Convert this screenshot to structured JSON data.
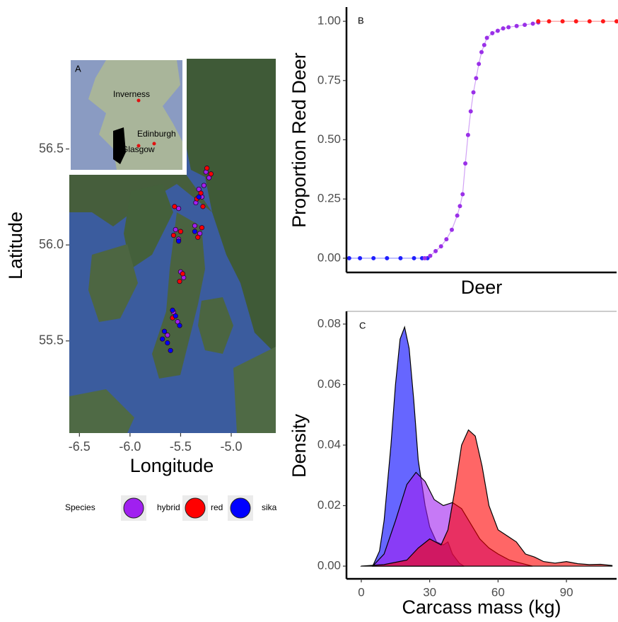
{
  "chart_data": [
    {
      "type": "scatter",
      "panel_label": "A",
      "x_label": "Longitude",
      "y_label": "Latitude",
      "xlim": [
        -6.6,
        -4.56
      ],
      "ylim": [
        55.02,
        56.97
      ],
      "xticks": [
        -6.5,
        {
          "value": -6,
          "label": "-6.0"
        },
        -5.5,
        {
          "value": -5,
          "label": "-5.0"
        }
      ],
      "yticks": [
        55.5,
        {
          "value": 56,
          "label": "56.0"
        },
        56.5
      ],
      "annotations": [
        "Inverness",
        "Edinburgh",
        "Glasgow"
      ],
      "legend_title": "Species",
      "series": [
        {
          "name": "hybrid",
          "color": "#a020f0",
          "x": [
            -5.32,
            -5.29,
            -5.35,
            -5.27,
            -5.55,
            -5.52,
            -5.36,
            -5.31,
            -5.5,
            -5.47,
            -5.57,
            -5.53,
            -5.63,
            -5.25,
            -5.22,
            -5.52
          ],
          "values": [
            56.29,
            56.25,
            56.22,
            56.31,
            56.08,
            56.03,
            56.1,
            56.06,
            55.86,
            55.83,
            55.65,
            55.6,
            55.53,
            56.38,
            56.35,
            56.19
          ]
        },
        {
          "name": "red",
          "color": "#ff0000",
          "x": [
            -5.3,
            -5.34,
            -5.28,
            -5.57,
            -5.5,
            -5.33,
            -5.29,
            -5.48,
            -5.51,
            -5.24,
            -5.56,
            -5.58,
            -5.2
          ],
          "values": [
            56.27,
            56.24,
            56.2,
            56.05,
            56.07,
            56.04,
            56.09,
            55.85,
            55.81,
            56.4,
            56.2,
            55.62,
            56.37
          ]
        },
        {
          "name": "sika",
          "color": "#0000ff",
          "x": [
            -5.55,
            -5.51,
            -5.66,
            -5.63,
            -5.68,
            -5.6,
            -5.32,
            -5.36,
            -5.52,
            -5.58
          ],
          "values": [
            55.63,
            55.58,
            55.55,
            55.49,
            55.51,
            55.45,
            56.25,
            56.07,
            56.02,
            55.66
          ]
        }
      ]
    },
    {
      "type": "line",
      "panel_label": "B",
      "x_label": "Deer",
      "y_label": "Proportion Red Deer",
      "xlim": [
        0,
        100
      ],
      "ylim": [
        -0.06,
        1.06
      ],
      "yticks": [
        {
          "value": 0,
          "label": "0.00"
        },
        {
          "value": 0.25,
          "label": "0.25"
        },
        {
          "value": 0.5,
          "label": "0.50"
        },
        {
          "value": 0.75,
          "label": "0.75"
        },
        {
          "value": 1,
          "label": "1.00"
        }
      ],
      "series": [
        {
          "color": "#1f1fff",
          "x": [
            1,
            5,
            10,
            15,
            20,
            25,
            28,
            30
          ],
          "values": [
            0,
            0,
            0,
            0,
            0,
            0,
            0,
            0
          ]
        },
        {
          "color": "#9a30e8",
          "x": [
            29,
            31,
            33,
            35,
            37,
            39,
            41,
            42,
            43,
            44,
            45,
            46,
            47,
            48,
            49,
            50,
            51,
            52,
            54,
            56,
            58,
            60,
            63,
            66,
            69,
            71
          ],
          "values": [
            0,
            0.01,
            0.03,
            0.05,
            0.08,
            0.12,
            0.18,
            0.22,
            0.27,
            0.4,
            0.52,
            0.62,
            0.7,
            0.76,
            0.82,
            0.87,
            0.9,
            0.93,
            0.95,
            0.96,
            0.97,
            0.975,
            0.98,
            0.985,
            0.99,
            0.995
          ]
        },
        {
          "color": "#ff1a1a",
          "x": [
            71,
            75,
            80,
            85,
            90,
            95,
            100
          ],
          "values": [
            1,
            1,
            1,
            1,
            1,
            1,
            1
          ]
        }
      ]
    },
    {
      "type": "area",
      "panel_label": "C",
      "x_label": "Carcass mass (kg)",
      "y_label": "Density",
      "xlim": [
        -6.5,
        112
      ],
      "ylim": [
        -0.0042,
        0.0842
      ],
      "xticks": [
        0,
        30,
        60,
        90
      ],
      "yticks": [
        {
          "value": 0,
          "label": "0.00"
        },
        {
          "value": 0.02,
          "label": "0.02"
        },
        {
          "value": 0.04,
          "label": "0.04"
        },
        {
          "value": 0.06,
          "label": "0.06"
        },
        {
          "value": 0.08,
          "label": "0.08"
        }
      ],
      "series": [
        {
          "color": "#0000ff",
          "x": [
            5,
            8,
            10,
            13,
            15,
            17,
            19,
            21,
            23,
            25,
            28,
            30,
            33,
            36,
            38,
            40,
            43,
            45
          ],
          "values": [
            0,
            0.005,
            0.015,
            0.04,
            0.06,
            0.075,
            0.079,
            0.072,
            0.055,
            0.035,
            0.02,
            0.013,
            0.008,
            0.007,
            0.008,
            0.004,
            0.001,
            0
          ]
        },
        {
          "color": "#a020f0",
          "x": [
            5,
            10,
            15,
            20,
            24,
            28,
            32,
            36,
            40,
            44,
            48,
            52,
            56,
            60,
            65,
            70,
            75
          ],
          "values": [
            0,
            0.004,
            0.015,
            0.027,
            0.031,
            0.028,
            0.022,
            0.02,
            0.021,
            0.019,
            0.014,
            0.009,
            0.006,
            0.004,
            0.002,
            0.001,
            0
          ]
        },
        {
          "color": "#ff0000",
          "x": [
            0,
            10,
            20,
            25,
            30,
            35,
            38,
            41,
            44,
            47,
            50,
            53,
            56,
            60,
            64,
            68,
            72,
            76,
            80,
            85,
            90,
            95,
            100,
            105,
            110
          ],
          "values": [
            0,
            0.0005,
            0.002,
            0.006,
            0.009,
            0.007,
            0.012,
            0.025,
            0.04,
            0.045,
            0.043,
            0.033,
            0.02,
            0.012,
            0.01,
            0.008,
            0.004,
            0.003,
            0.0015,
            0.001,
            0.0015,
            0.0008,
            0.0005,
            0.0006,
            0.0002
          ]
        }
      ]
    }
  ]
}
